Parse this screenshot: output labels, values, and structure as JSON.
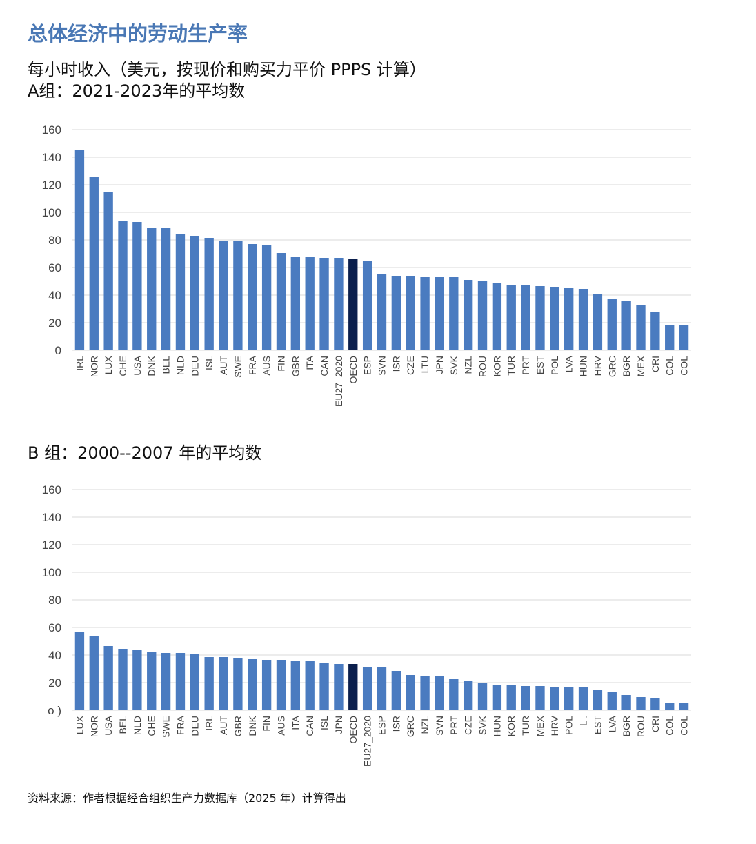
{
  "header": {
    "title": "总体经济中的劳动生产率",
    "subtitle_line1": "每小时收入（美元，按现价和购买力平价 PPPS 计算）",
    "subtitle_line2": "A组：2021-2023年的平均数"
  },
  "panel_b_title": "B 组：2000--2007 年的平均数",
  "source": "资料来源：作者根据经合组织生产力数据库（2025 年）计算得出",
  "colors": {
    "bar": "#4a7bc0",
    "highlight": "#0b1f4d",
    "grid": "#d9d9d9"
  },
  "chart_data": [
    {
      "type": "bar",
      "title": "A组：2021-2023年的平均数",
      "ylim": [
        0,
        160
      ],
      "yticks": [
        "0",
        "20",
        "40",
        "60",
        "80",
        "100",
        "120",
        "140",
        "160"
      ],
      "highlight": "OECD",
      "categories": [
        "IRL",
        "NOR",
        "LUX",
        "CHE",
        "USA",
        "DNK",
        "BEL",
        "NLD",
        "DEU",
        "ISL",
        "AUT",
        "SWE",
        "FRA",
        "AUS",
        "FIN",
        "GBR",
        "ITA",
        "CAN",
        "EU27_2020",
        "OECD",
        "ESP",
        "SVN",
        "ISR",
        "CZE",
        "LTU",
        "JPN",
        "SVK",
        "NZL",
        "ROU",
        "KOR",
        "TUR",
        "PRT",
        "EST",
        "POL",
        "LVA",
        "HUN",
        "HRV",
        "GRC",
        "BGR",
        "MEX",
        "CRI",
        "COL",
        "COL"
      ],
      "values": [
        145,
        126,
        115,
        94,
        93,
        89,
        88.5,
        84,
        83,
        81.5,
        79.5,
        79,
        77,
        76,
        70.5,
        68,
        67.5,
        67,
        67,
        66.5,
        64.5,
        55.5,
        54,
        54,
        53.5,
        53.5,
        53,
        51,
        50.5,
        49,
        47.5,
        47,
        46.5,
        46,
        45.5,
        44.5,
        41,
        37.5,
        36,
        33,
        28,
        18.5,
        18.5
      ]
    },
    {
      "type": "bar",
      "title": "B 组：2000--2007 年的平均数",
      "ylim": [
        0,
        160
      ],
      "yticks": [
        "o )",
        "20",
        "40",
        "60",
        "80",
        "100",
        "120",
        "140",
        "160"
      ],
      "highlight": "OECD",
      "categories": [
        "LUX",
        "NOR",
        "USA",
        "BEL",
        "NLD",
        "CHE",
        "SWE",
        "FRA",
        "DEU",
        "IRL",
        "AUT",
        "GBR",
        "DNK",
        "FIN",
        "AUS",
        "ITA",
        "CAN",
        "ISL",
        "JPN",
        "OECD",
        "EU27_2020",
        "ESP",
        "ISR",
        "GRC",
        "NZL",
        "SVN",
        "PRT",
        "CZE",
        "SVK",
        "HUN",
        "KOR",
        "TUR",
        "MEX",
        "HRV",
        "POL",
        "L .",
        "EST",
        "LVA",
        "BGR",
        "ROU",
        "CRI",
        "COL",
        "COL"
      ],
      "values": [
        57,
        54,
        46.5,
        44.5,
        43.5,
        42,
        41.5,
        41.5,
        40.5,
        38.5,
        38.5,
        38,
        37.5,
        36.5,
        36.5,
        36,
        35.5,
        34.5,
        33.5,
        33.5,
        31.5,
        31,
        28.5,
        25.5,
        24.5,
        24.5,
        22.5,
        21.5,
        20,
        18,
        18,
        17.5,
        17.5,
        17,
        16.5,
        16.5,
        15,
        13,
        11,
        9.5,
        9,
        5.5,
        5.5
      ]
    }
  ]
}
